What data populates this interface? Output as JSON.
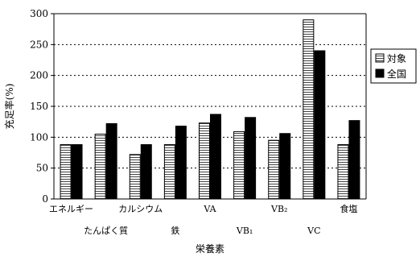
{
  "chart_data": {
    "type": "bar",
    "title": "",
    "xlabel": "栄養素",
    "ylabel": "充足率(%)",
    "ylim": [
      0,
      300
    ],
    "yticks": [
      0,
      50,
      100,
      150,
      200,
      250,
      300
    ],
    "categories": [
      "エネルギー",
      "たんぱく質",
      "カルシウム",
      "鉄",
      "VA",
      "VB₁",
      "VB₂",
      "VC",
      "食塩"
    ],
    "series": [
      {
        "name": "対象",
        "values": [
          88,
          105,
          72,
          88,
          123,
          109,
          95,
          290,
          88
        ],
        "color": "#ffffff",
        "pattern": "horizontal-lines"
      },
      {
        "name": "全国",
        "values": [
          88,
          122,
          88,
          118,
          137,
          132,
          106,
          240,
          127
        ],
        "color": "#000000",
        "pattern": "solid"
      }
    ],
    "grid": {
      "horizontal": true,
      "style": "dotted"
    },
    "legend": {
      "position": "right"
    }
  }
}
